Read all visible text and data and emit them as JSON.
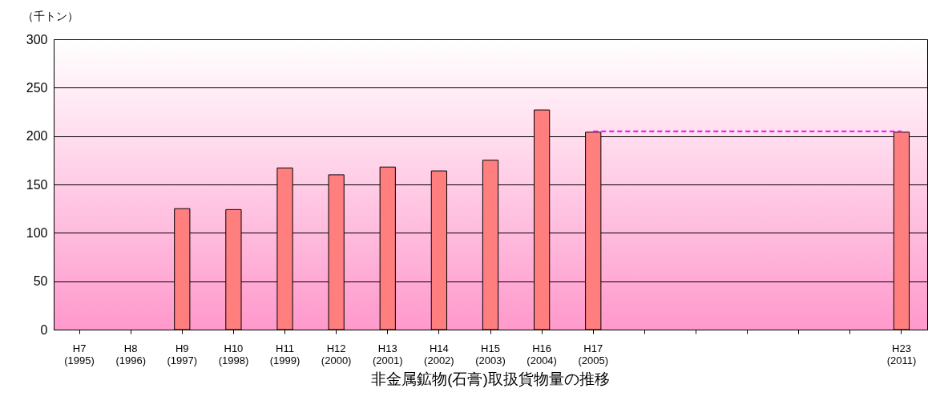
{
  "chart_data": {
    "type": "bar",
    "title": "非金属鉱物(石膏)取扱貨物量の推移",
    "ylabel": "（千トン）",
    "categories": [
      "H7\n(1995)",
      "H8\n(1996)",
      "H9\n(1997)",
      "H10\n(1998)",
      "H11\n(1999)",
      "H12\n(2000)",
      "H13\n(2001)",
      "H14\n(2002)",
      "H15\n(2003)",
      "H16\n(2004)",
      "H17\n(2005)",
      null,
      null,
      null,
      null,
      null,
      "H23\n(2011)"
    ],
    "series": [
      {
        "color": "#ff7f7f",
        "values": [
          null,
          null,
          125,
          124,
          167,
          160,
          168,
          164,
          175,
          227,
          204,
          null,
          null,
          null,
          null,
          null,
          204
        ]
      },
      {
        "type": "line",
        "color": "#ff00ff",
        "line_style": "dashed",
        "values": [
          null,
          null,
          null,
          null,
          null,
          null,
          null,
          null,
          null,
          null,
          205,
          null,
          null,
          null,
          null,
          null,
          205
        ]
      }
    ],
    "ylim": [
      0,
      300
    ],
    "yticks": [
      0,
      50,
      100,
      150,
      200,
      250,
      300
    ],
    "grid": "y"
  }
}
